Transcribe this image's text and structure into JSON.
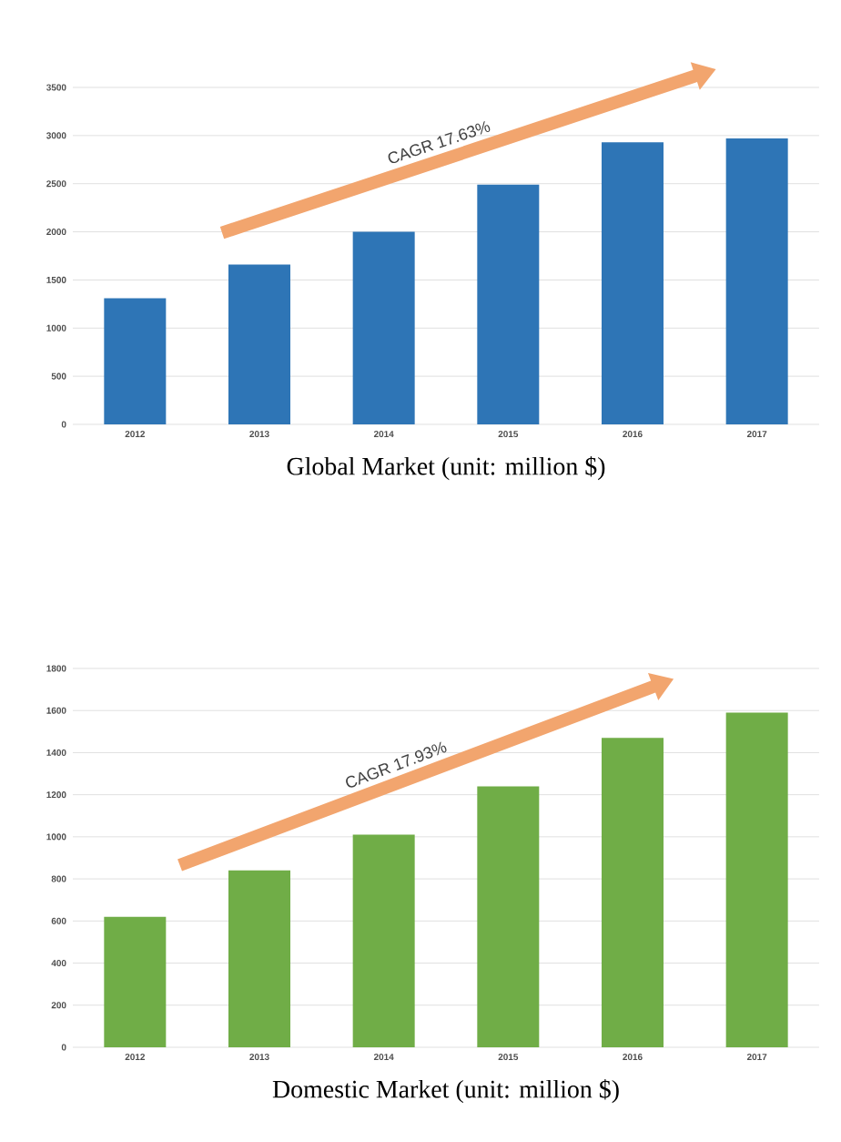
{
  "chart_data": [
    {
      "type": "bar",
      "title": "Global Market (unit: million $)",
      "categories": [
        "2012",
        "2013",
        "2014",
        "2015",
        "2016",
        "2017"
      ],
      "values": [
        1310,
        1660,
        2000,
        2490,
        2930,
        2970
      ],
      "color": "#2e75b6",
      "ylim": [
        0,
        3500
      ],
      "yticks": [
        0,
        500,
        1000,
        1500,
        2000,
        2500,
        3000,
        3500
      ],
      "grid": "y",
      "annotations": [
        "CAGR 17.63%"
      ]
    },
    {
      "type": "bar",
      "title": "Domestic Market (unit: million $)",
      "categories": [
        "2012",
        "2013",
        "2014",
        "2015",
        "2016",
        "2017"
      ],
      "values": [
        620,
        840,
        1010,
        1240,
        1470,
        1590
      ],
      "color": "#70ad47",
      "ylim": [
        0,
        1800
      ],
      "yticks": [
        0,
        200,
        400,
        600,
        800,
        1000,
        1200,
        1400,
        1600,
        1800
      ],
      "grid": "y",
      "annotations": [
        "CAGR 17.93%"
      ]
    }
  ]
}
